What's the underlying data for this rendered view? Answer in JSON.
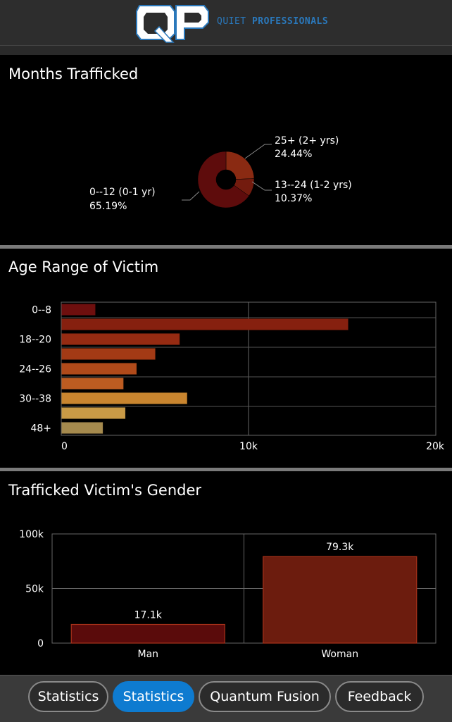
{
  "header": {
    "logo_text": "QP",
    "brand_word1": "QUIET",
    "brand_word2": "PROFESSIONALS"
  },
  "colors": {
    "accent": "#0e7bd0",
    "brand_blue": "#2a78bb",
    "panel": "#2d2d2d"
  },
  "sections": {
    "months": {
      "title": "Months Trafficked"
    },
    "age": {
      "title": "Age Range of Victim"
    },
    "gender": {
      "title": "Trafficked Victim's Gender"
    }
  },
  "chart_data": [
    {
      "type": "pie",
      "title": "Months Trafficked",
      "donut": true,
      "slices": [
        {
          "label": "0--12 (0-1 yr)",
          "value": 65.19,
          "display": "65.19%",
          "color": "#5e0c0c"
        },
        {
          "label": "25+ (2+ yrs)",
          "value": 24.44,
          "display": "24.44%",
          "color": "#8a2a12"
        },
        {
          "label": "13--24 (1-2 yrs)",
          "value": 10.37,
          "display": "10.37%",
          "color": "#731b0e"
        }
      ]
    },
    {
      "type": "bar",
      "orientation": "horizontal",
      "title": "Age Range of Victim",
      "categories": [
        "0--8",
        "",
        "18--20",
        "",
        "24--26",
        "",
        "30--38",
        "",
        "48+"
      ],
      "values": [
        1800,
        15300,
        6300,
        5000,
        4000,
        3300,
        6700,
        3400,
        2200
      ],
      "colors": [
        "#6e0f0e",
        "#86200f",
        "#962b12",
        "#a33a15",
        "#b04a1a",
        "#bd5c21",
        "#c9852f",
        "#c99a46",
        "#a58a4e"
      ],
      "xlim": [
        0,
        20000
      ],
      "xticks": [
        "0",
        "10k",
        "20k"
      ],
      "grid": true
    },
    {
      "type": "bar",
      "title": "Trafficked Victim's Gender",
      "categories": [
        "Man",
        "Woman"
      ],
      "values": [
        17100,
        79300
      ],
      "data_labels": [
        "17.1k",
        "79.3k"
      ],
      "colors": [
        "#5a0b0b",
        "#6c1c0e"
      ],
      "ylim": [
        0,
        100000
      ],
      "yticks": [
        "0",
        "50k",
        "100k"
      ],
      "grid": true
    }
  ],
  "tabs": [
    {
      "label": "Statistics",
      "active": false
    },
    {
      "label": "Statistics",
      "active": true
    },
    {
      "label": "Quantum Fusion",
      "active": false
    },
    {
      "label": "Feedback",
      "active": false
    }
  ]
}
